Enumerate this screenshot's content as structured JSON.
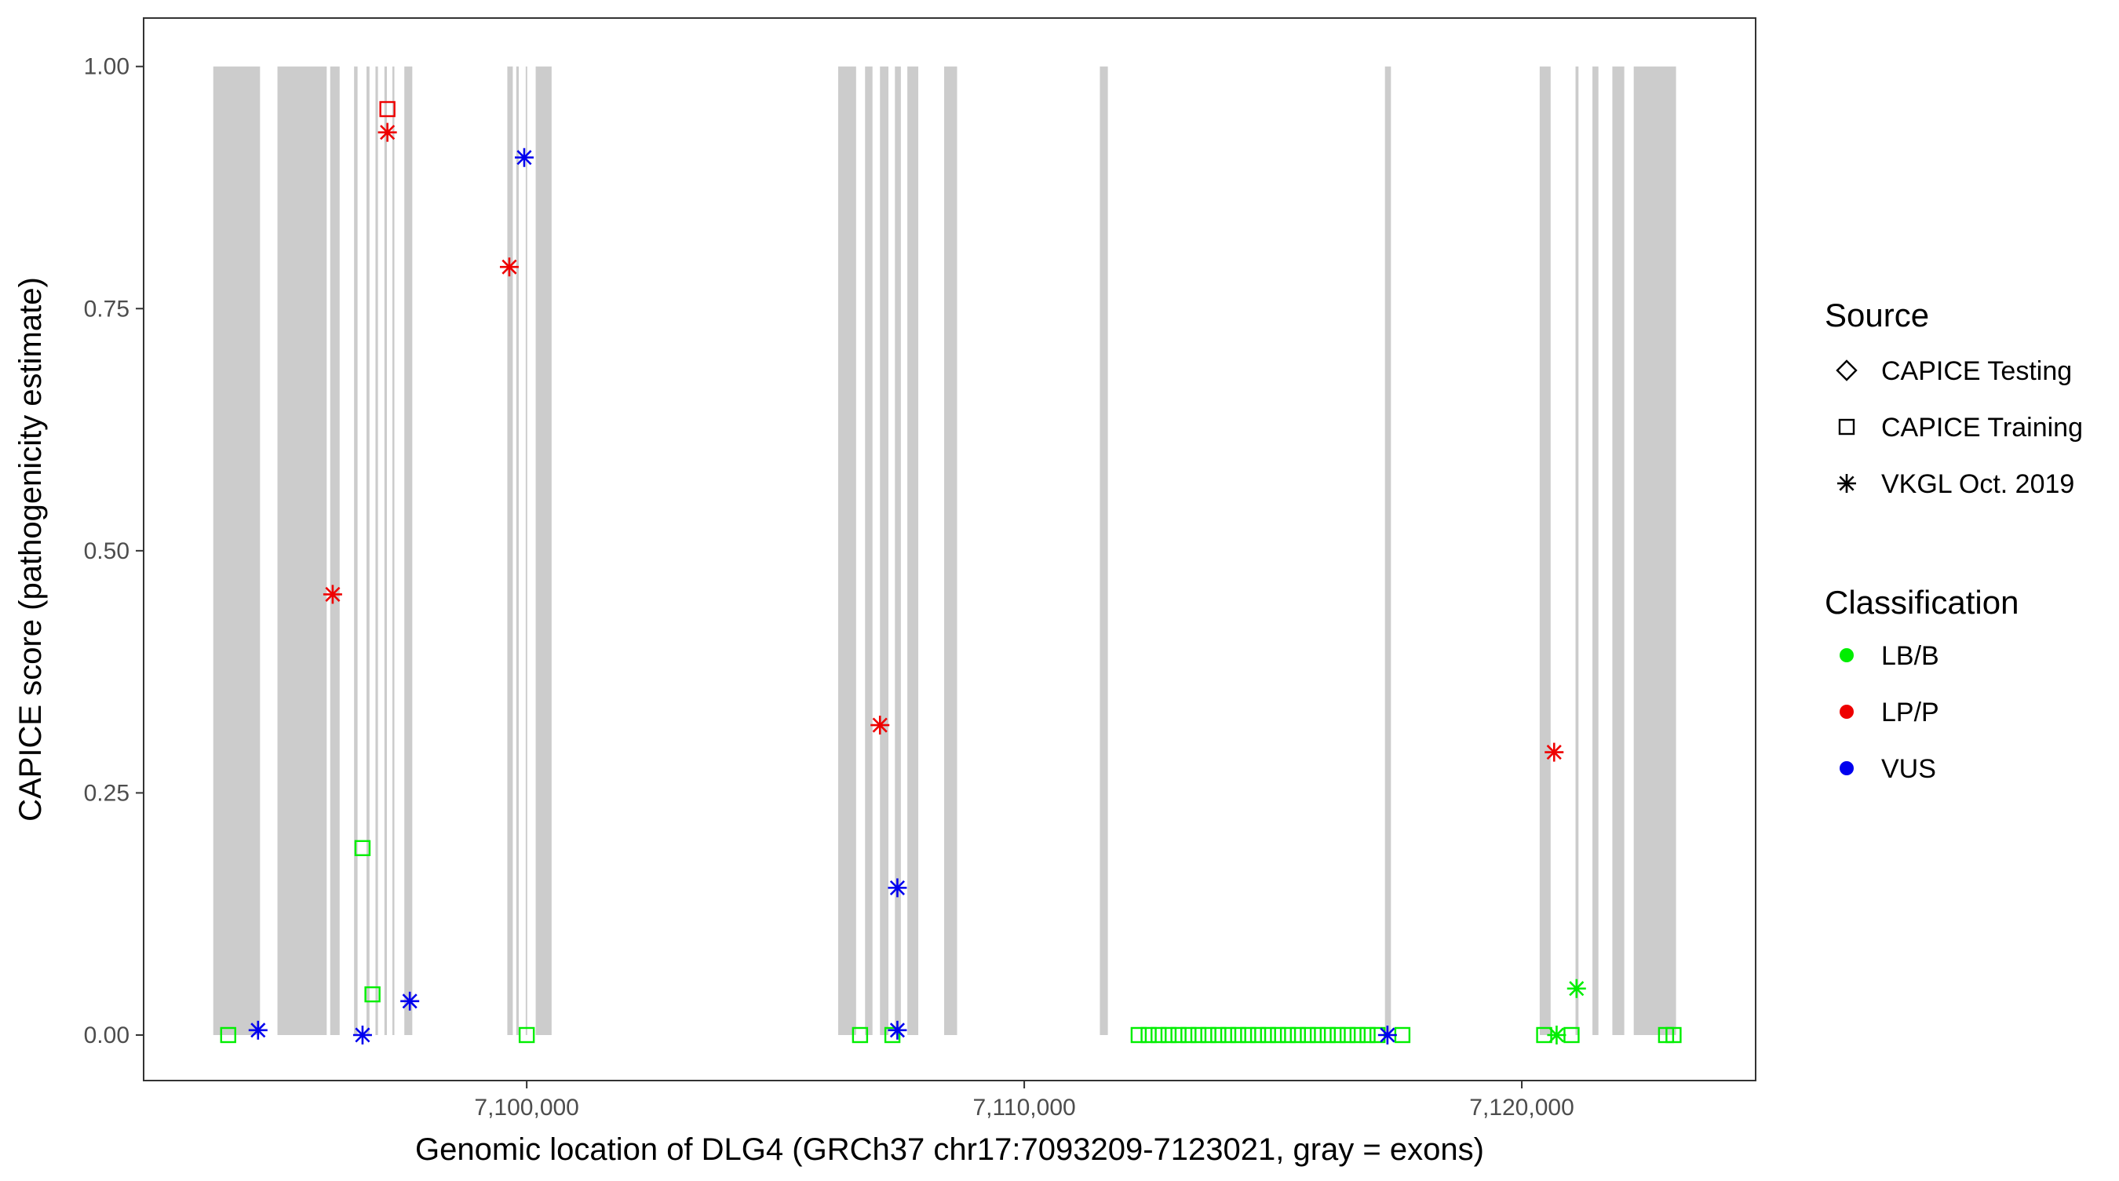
{
  "chart_data": {
    "type": "scatter",
    "xlabel": "Genomic location of DLG4 (GRCh37 chr17:7093209-7123021, gray = exons)",
    "ylabel": "CAPICE score (pathogenicity estimate)",
    "xlim": [
      7092300,
      7124700
    ],
    "ylim": [
      -0.047,
      1.05
    ],
    "x_ticks": [
      7100000,
      7110000,
      7120000
    ],
    "x_tick_labels": [
      "7,100,000",
      "7,110,000",
      "7,120,000"
    ],
    "y_ticks": [
      0,
      0.25,
      0.5,
      0.75,
      1.0
    ],
    "y_tick_labels": [
      "0.00",
      "0.25",
      "0.50",
      "0.75",
      "1.00"
    ],
    "grid": false,
    "exon_color": "#cccccc",
    "exons": [
      [
        7093700,
        7094640
      ],
      [
        7094990,
        7095980
      ],
      [
        7096050,
        7096240
      ],
      [
        7096530,
        7096600
      ],
      [
        7096780,
        7096840
      ],
      [
        7096960,
        7097010
      ],
      [
        7097140,
        7097190
      ],
      [
        7097300,
        7097340
      ],
      [
        7097540,
        7097700
      ],
      [
        7099610,
        7099720
      ],
      [
        7099790,
        7099840
      ],
      [
        7099980,
        7100010
      ],
      [
        7100180,
        7100500
      ],
      [
        7106260,
        7106620
      ],
      [
        7106800,
        7106950
      ],
      [
        7107100,
        7107270
      ],
      [
        7107400,
        7107520
      ],
      [
        7107650,
        7107870
      ],
      [
        7108390,
        7108650
      ],
      [
        7111520,
        7111680
      ],
      [
        7117250,
        7117370
      ],
      [
        7120360,
        7120580
      ],
      [
        7121080,
        7121140
      ],
      [
        7121420,
        7121540
      ],
      [
        7121820,
        7122060
      ],
      [
        7122250,
        7123100
      ]
    ],
    "legend": {
      "position": "right",
      "source_title": "Source",
      "source_entries": [
        {
          "label": "CAPICE Testing",
          "shape": "diamond"
        },
        {
          "label": "CAPICE Training",
          "shape": "square"
        },
        {
          "label": "VKGL Oct. 2019",
          "shape": "asterisk"
        }
      ],
      "classification_title": "Classification",
      "classification_entries": [
        {
          "label": "LB/B",
          "color": "#00ee00"
        },
        {
          "label": "LP/P",
          "color": "#ee0000"
        },
        {
          "label": "VUS",
          "color": "#0000ee"
        }
      ]
    },
    "series": [
      {
        "source": "CAPICE Training",
        "classification": "LB/B",
        "color": "#00ee00",
        "shape": "square",
        "points": [
          [
            7094000,
            0.0
          ],
          [
            7096700,
            0.193
          ],
          [
            7096900,
            0.042
          ],
          [
            7100000,
            0.0
          ],
          [
            7106700,
            0.0
          ],
          [
            7107350,
            0.0
          ],
          [
            7112300,
            0.0
          ],
          [
            7112500,
            0.0
          ],
          [
            7112700,
            0.0
          ],
          [
            7112900,
            0.0
          ],
          [
            7113100,
            0.0
          ],
          [
            7113300,
            0.0
          ],
          [
            7113500,
            0.0
          ],
          [
            7113700,
            0.0
          ],
          [
            7113900,
            0.0
          ],
          [
            7114100,
            0.0
          ],
          [
            7114300,
            0.0
          ],
          [
            7114500,
            0.0
          ],
          [
            7114700,
            0.0
          ],
          [
            7114900,
            0.0
          ],
          [
            7115100,
            0.0
          ],
          [
            7115300,
            0.0
          ],
          [
            7115500,
            0.0
          ],
          [
            7115700,
            0.0
          ],
          [
            7115900,
            0.0
          ],
          [
            7116100,
            0.0
          ],
          [
            7116300,
            0.0
          ],
          [
            7116500,
            0.0
          ],
          [
            7116700,
            0.0
          ],
          [
            7116900,
            0.0
          ],
          [
            7117100,
            0.0
          ],
          [
            7117600,
            0.0
          ],
          [
            7120450,
            0.0
          ],
          [
            7121000,
            0.0
          ],
          [
            7122900,
            0.0
          ],
          [
            7123050,
            0.0
          ]
        ]
      },
      {
        "source": "CAPICE Training",
        "classification": "LP/P",
        "color": "#ee0000",
        "shape": "square",
        "points": [
          [
            7097200,
            0.956
          ]
        ]
      },
      {
        "source": "VKGL Oct. 2019",
        "classification": "LB/B",
        "color": "#00ee00",
        "shape": "asterisk",
        "points": [
          [
            7120700,
            0.0
          ],
          [
            7121100,
            0.048
          ]
        ]
      },
      {
        "source": "VKGL Oct. 2019",
        "classification": "LP/P",
        "color": "#ee0000",
        "shape": "asterisk",
        "points": [
          [
            7096100,
            0.455
          ],
          [
            7097200,
            0.932
          ],
          [
            7099650,
            0.793
          ],
          [
            7107100,
            0.32
          ],
          [
            7120650,
            0.292
          ]
        ]
      },
      {
        "source": "VKGL Oct. 2019",
        "classification": "VUS",
        "color": "#0000ee",
        "shape": "asterisk",
        "points": [
          [
            7094600,
            0.005
          ],
          [
            7096700,
            0.0
          ],
          [
            7097650,
            0.035
          ],
          [
            7099950,
            0.906
          ],
          [
            7107450,
            0.152
          ],
          [
            7107450,
            0.005
          ],
          [
            7117300,
            0.0
          ]
        ]
      }
    ]
  }
}
